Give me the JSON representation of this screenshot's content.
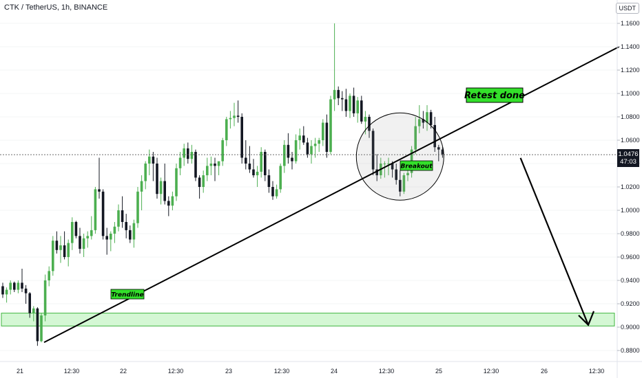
{
  "header": {
    "title": "CTK / TetherUS, 1h, BINANCE",
    "currency_badge": "USDT",
    "last_price": "1.0476",
    "countdown": "47:03"
  },
  "chart_data": {
    "type": "candlestick",
    "symbol": "CTK / TetherUS",
    "interval": "1h",
    "exchange": "BINANCE",
    "ylim": [
      0.875,
      1.17
    ],
    "y_ticks": [
      "1.1600",
      "1.1400",
      "1.1200",
      "1.1000",
      "1.0800",
      "1.0600",
      "1.0400",
      "1.0200",
      "1.0000",
      "0.9800",
      "0.9600",
      "0.9400",
      "0.9200",
      "0.9000",
      "0.8800"
    ],
    "x_ticks": [
      "21",
      "12:30",
      "22",
      "12:30",
      "23",
      "12:30",
      "24",
      "12:30",
      "25",
      "12:30",
      "26",
      "12:30"
    ],
    "colors": {
      "up": "#4caf50",
      "down": "#131722",
      "zone_fill": "#d4f7d4",
      "zone_border": "#3fb63f",
      "annotation_bg": "#33e02a"
    },
    "candles": [
      [
        0.935,
        0.938,
        0.925,
        0.928
      ],
      [
        0.928,
        0.934,
        0.921,
        0.932
      ],
      [
        0.932,
        0.94,
        0.928,
        0.938
      ],
      [
        0.938,
        0.939,
        0.93,
        0.932
      ],
      [
        0.932,
        0.94,
        0.929,
        0.938
      ],
      [
        0.938,
        0.95,
        0.93,
        0.933
      ],
      [
        0.933,
        0.936,
        0.92,
        0.929
      ],
      [
        0.929,
        0.93,
        0.908,
        0.912
      ],
      [
        0.912,
        0.918,
        0.905,
        0.916
      ],
      [
        0.916,
        0.917,
        0.884,
        0.888
      ],
      [
        0.888,
        0.912,
        0.887,
        0.91
      ],
      [
        0.91,
        0.945,
        0.905,
        0.94
      ],
      [
        0.94,
        0.952,
        0.935,
        0.948
      ],
      [
        0.948,
        0.978,
        0.944,
        0.974
      ],
      [
        0.974,
        0.982,
        0.963,
        0.966
      ],
      [
        0.966,
        0.978,
        0.955,
        0.97
      ],
      [
        0.97,
        0.982,
        0.958,
        0.96
      ],
      [
        0.96,
        0.975,
        0.952,
        0.972
      ],
      [
        0.972,
        0.994,
        0.966,
        0.99
      ],
      [
        0.99,
        0.991,
        0.976,
        0.978
      ],
      [
        0.978,
        0.985,
        0.963,
        0.967
      ],
      [
        0.967,
        0.98,
        0.96,
        0.976
      ],
      [
        0.976,
        0.982,
        0.968,
        0.978
      ],
      [
        0.978,
        0.995,
        0.975,
        0.983
      ],
      [
        0.983,
        1.02,
        0.98,
        1.018
      ],
      [
        1.018,
        1.045,
        1.01,
        1.016
      ],
      [
        1.016,
        1.018,
        0.975,
        0.978
      ],
      [
        0.978,
        0.985,
        0.962,
        0.975
      ],
      [
        0.975,
        0.982,
        0.965,
        0.98
      ],
      [
        0.98,
        0.99,
        0.972,
        0.986
      ],
      [
        0.986,
        1.005,
        0.982,
        1.0
      ],
      [
        1.0,
        1.012,
        0.985,
        0.99
      ],
      [
        0.99,
        0.997,
        0.976,
        0.983
      ],
      [
        0.983,
        0.987,
        0.972,
        0.975
      ],
      [
        0.975,
        0.992,
        0.968,
        0.989
      ],
      [
        0.989,
        1.02,
        0.985,
        1.016
      ],
      [
        1.016,
        1.03,
        1.0,
        1.025
      ],
      [
        1.025,
        1.042,
        1.018,
        1.04
      ],
      [
        1.04,
        1.052,
        1.03,
        1.046
      ],
      [
        1.046,
        1.05,
        1.025,
        1.04
      ],
      [
        1.04,
        1.045,
        1.01,
        1.014
      ],
      [
        1.014,
        1.028,
        1.005,
        1.025
      ],
      [
        1.025,
        1.04,
        1.005,
        1.008
      ],
      [
        1.008,
        1.012,
        0.995,
        1.004
      ],
      [
        1.004,
        1.016,
        1.0,
        1.012
      ],
      [
        1.012,
        1.04,
        1.008,
        1.036
      ],
      [
        1.036,
        1.05,
        1.03,
        1.045
      ],
      [
        1.045,
        1.057,
        1.038,
        1.053
      ],
      [
        1.053,
        1.058,
        1.04,
        1.044
      ],
      [
        1.044,
        1.056,
        1.04,
        1.05
      ],
      [
        1.05,
        1.052,
        1.025,
        1.028
      ],
      [
        1.028,
        1.03,
        1.01,
        1.02
      ],
      [
        1.02,
        1.034,
        1.015,
        1.03
      ],
      [
        1.03,
        1.045,
        1.025,
        1.038
      ],
      [
        1.038,
        1.046,
        1.03,
        1.04
      ],
      [
        1.04,
        1.045,
        1.025,
        1.038
      ],
      [
        1.038,
        1.04,
        1.03,
        1.042
      ],
      [
        1.042,
        1.062,
        1.038,
        1.06
      ],
      [
        1.06,
        1.08,
        1.055,
        1.078
      ],
      [
        1.078,
        1.085,
        1.07,
        1.079
      ],
      [
        1.079,
        1.092,
        1.072,
        1.081
      ],
      [
        1.081,
        1.094,
        1.075,
        1.08
      ],
      [
        1.08,
        1.083,
        1.04,
        1.045
      ],
      [
        1.045,
        1.06,
        1.035,
        1.04
      ],
      [
        1.04,
        1.055,
        1.032,
        1.035
      ],
      [
        1.035,
        1.044,
        1.028,
        1.03
      ],
      [
        1.03,
        1.038,
        1.02,
        1.033
      ],
      [
        1.033,
        1.054,
        1.028,
        1.05
      ],
      [
        1.05,
        1.052,
        1.025,
        1.03
      ],
      [
        1.03,
        1.035,
        1.015,
        1.02
      ],
      [
        1.02,
        1.025,
        1.009,
        1.012
      ],
      [
        1.012,
        1.022,
        1.01,
        1.018
      ],
      [
        1.018,
        1.04,
        1.015,
        1.038
      ],
      [
        1.038,
        1.06,
        1.032,
        1.056
      ],
      [
        1.056,
        1.066,
        1.04,
        1.045
      ],
      [
        1.045,
        1.05,
        1.035,
        1.042
      ],
      [
        1.042,
        1.065,
        1.04,
        1.06
      ],
      [
        1.06,
        1.07,
        1.052,
        1.064
      ],
      [
        1.064,
        1.072,
        1.056,
        1.058
      ],
      [
        1.058,
        1.062,
        1.045,
        1.048
      ],
      [
        1.048,
        1.06,
        1.04,
        1.055
      ],
      [
        1.055,
        1.062,
        1.045,
        1.057
      ],
      [
        1.057,
        1.062,
        1.05,
        1.06
      ],
      [
        1.06,
        1.078,
        1.055,
        1.075
      ],
      [
        1.075,
        1.082,
        1.045,
        1.05
      ],
      [
        1.05,
        1.098,
        1.048,
        1.095
      ],
      [
        1.095,
        1.16,
        1.085,
        1.103
      ],
      [
        1.103,
        1.106,
        1.09,
        1.096
      ],
      [
        1.096,
        1.102,
        1.085,
        1.095
      ],
      [
        1.095,
        1.104,
        1.08,
        1.085
      ],
      [
        1.085,
        1.1,
        1.079,
        1.098
      ],
      [
        1.098,
        1.105,
        1.08,
        1.083
      ],
      [
        1.083,
        1.097,
        1.075,
        1.094
      ],
      [
        1.094,
        1.098,
        1.074,
        1.076
      ],
      [
        1.076,
        1.085,
        1.065,
        1.08
      ],
      [
        1.08,
        1.082,
        1.062,
        1.068
      ],
      [
        1.068,
        1.07,
        1.03,
        1.035
      ],
      [
        1.035,
        1.048,
        1.025,
        1.03
      ],
      [
        1.03,
        1.045,
        1.027,
        1.04
      ],
      [
        1.04,
        1.042,
        1.028,
        1.04
      ],
      [
        1.04,
        1.045,
        1.03,
        1.04
      ],
      [
        1.04,
        1.042,
        1.028,
        1.035
      ],
      [
        1.035,
        1.04,
        1.022,
        1.026
      ],
      [
        1.026,
        1.034,
        1.012,
        1.016
      ],
      [
        1.016,
        1.032,
        1.014,
        1.03
      ],
      [
        1.03,
        1.04,
        1.025,
        1.032
      ],
      [
        1.032,
        1.055,
        1.028,
        1.052
      ],
      [
        1.052,
        1.08,
        1.048,
        1.072
      ],
      [
        1.072,
        1.09,
        1.066,
        1.078
      ],
      [
        1.078,
        1.085,
        1.07,
        1.075
      ],
      [
        1.075,
        1.09,
        1.068,
        1.084
      ],
      [
        1.084,
        1.086,
        1.07,
        1.073
      ],
      [
        1.073,
        1.08,
        1.05,
        1.054
      ],
      [
        1.054,
        1.056,
        1.042,
        1.052
      ],
      [
        1.052,
        1.054,
        1.045,
        1.048
      ]
    ],
    "current_price": 1.0476,
    "trendline": {
      "from": {
        "index": 10,
        "price": 0.887
      },
      "to": {
        "index": 148,
        "price": 1.14
      }
    },
    "support_zone": [
      0.901,
      0.912
    ],
    "circle": {
      "center_index": 103,
      "center_price": 1.046,
      "radius_bars": 18
    },
    "forecast_arrow": {
      "from": {
        "index": 111,
        "price": 1.046
      },
      "to": {
        "index": 138,
        "price": 0.906
      }
    },
    "annotations": {
      "trendline_label": "Trendline",
      "breakout_label": "Breakout",
      "retest_label": "Retest done"
    }
  }
}
